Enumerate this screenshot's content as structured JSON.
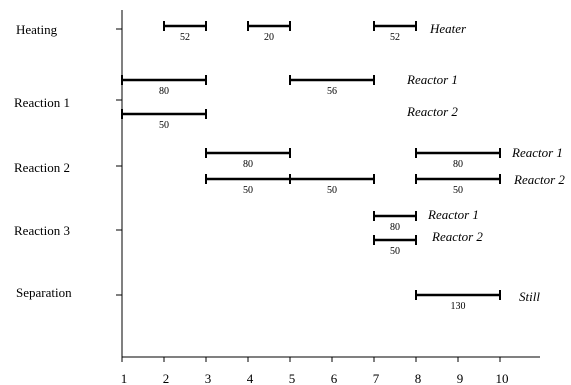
{
  "title": "",
  "axis": {
    "x_min": 1,
    "x_max": 10,
    "ticks": [
      1,
      2,
      3,
      4,
      5,
      6,
      7,
      8,
      9,
      10
    ]
  },
  "rows": [
    {
      "id": "heating",
      "label": "Heating"
    },
    {
      "id": "reaction1",
      "label": "Reaction 1"
    },
    {
      "id": "reaction2",
      "label": "Reaction 2"
    },
    {
      "id": "reaction3",
      "label": "Reaction 3"
    },
    {
      "id": "separation",
      "label": "Separation"
    }
  ],
  "lanes": [
    {
      "row": "heating",
      "unit": "Heater",
      "tasks": [
        {
          "start": 2,
          "end": 3,
          "value": "52"
        },
        {
          "start": 4,
          "end": 5,
          "value": "20"
        },
        {
          "start": 7,
          "end": 8,
          "value": "52"
        }
      ]
    },
    {
      "row": "reaction1",
      "unit": "Reactor 1",
      "tasks": [
        {
          "start": 1,
          "end": 3,
          "value": "80"
        },
        {
          "start": 5,
          "end": 7,
          "value": "56"
        }
      ]
    },
    {
      "row": "reaction1",
      "unit": "Reactor 2",
      "tasks": [
        {
          "start": 1,
          "end": 3,
          "value": "50"
        }
      ]
    },
    {
      "row": "reaction2",
      "unit": "Reactor 1",
      "tasks": [
        {
          "start": 3,
          "end": 5,
          "value": "80"
        },
        {
          "start": 8,
          "end": 10,
          "value": "80"
        }
      ]
    },
    {
      "row": "reaction2",
      "unit": "Reactor 2",
      "tasks": [
        {
          "start": 3,
          "end": 5,
          "value": "50"
        },
        {
          "start": 5,
          "end": 7,
          "value": "50"
        },
        {
          "start": 8,
          "end": 10,
          "value": "50"
        }
      ]
    },
    {
      "row": "reaction3",
      "unit": "Reactor 1",
      "tasks": [
        {
          "start": 7,
          "end": 8,
          "value": "80"
        }
      ]
    },
    {
      "row": "reaction3",
      "unit": "Reactor 2",
      "tasks": [
        {
          "start": 7,
          "end": 8,
          "value": "50"
        }
      ]
    },
    {
      "row": "separation",
      "unit": "Still",
      "tasks": [
        {
          "start": 8,
          "end": 10,
          "value": "130"
        }
      ]
    }
  ]
}
